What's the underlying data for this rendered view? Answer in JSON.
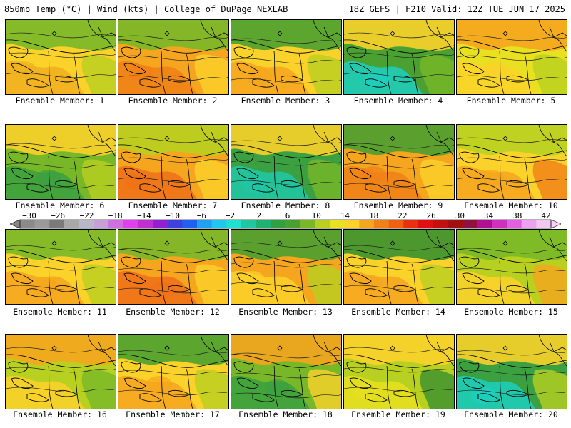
{
  "header": {
    "left": "850mb Temp (°C) | Wind (kts) | College of DuPage NEXLAB",
    "right": "18Z GEFS | F210 Valid: 12Z TUE JUN 17 2025"
  },
  "members": [
    {
      "caption": "Ensemble Member: 1",
      "palette": [
        "#f0b020",
        "#fbd22a",
        "#b8d020",
        "#78b828"
      ]
    },
    {
      "caption": "Ensemble Member: 2",
      "palette": [
        "#f08018",
        "#f5a51e",
        "#fbd22a",
        "#78b828"
      ]
    },
    {
      "caption": "Ensemble Member: 3",
      "palette": [
        "#f5a51e",
        "#fbd22a",
        "#b8d020",
        "#4aa030"
      ]
    },
    {
      "caption": "Ensemble Member: 4",
      "palette": [
        "#1cd0c0",
        "#4aa030",
        "#78b828",
        "#fbd22a"
      ]
    },
    {
      "caption": "Ensemble Member: 5",
      "palette": [
        "#fbd22a",
        "#e8e020",
        "#b8d020",
        "#f5a51e"
      ]
    },
    {
      "caption": "Ensemble Member: 6",
      "palette": [
        "#3aa040",
        "#78b828",
        "#b8d020",
        "#fbd22a"
      ]
    },
    {
      "caption": "Ensemble Member: 7",
      "palette": [
        "#f07018",
        "#f5a51e",
        "#fbd22a",
        "#b8d020"
      ]
    },
    {
      "caption": "Ensemble Member: 8",
      "palette": [
        "#20c8a8",
        "#3aa040",
        "#78b828",
        "#fbd22a"
      ]
    },
    {
      "caption": "Ensemble Member: 9",
      "palette": [
        "#f08018",
        "#f5a51e",
        "#fbd22a",
        "#4aa030"
      ]
    },
    {
      "caption": "Ensemble Member: 10",
      "palette": [
        "#f5a51e",
        "#fbd22a",
        "#f08018",
        "#b8d020"
      ]
    },
    {
      "caption": "Ensemble Member: 11",
      "palette": [
        "#f5a51e",
        "#fbd22a",
        "#b8d020",
        "#78b828"
      ]
    },
    {
      "caption": "Ensemble Member: 12",
      "palette": [
        "#f07018",
        "#f5a51e",
        "#fbd22a",
        "#78b828"
      ]
    },
    {
      "caption": "Ensemble Member: 13",
      "palette": [
        "#fbd22a",
        "#f5a51e",
        "#b8d020",
        "#4aa030"
      ]
    },
    {
      "caption": "Ensemble Member: 14",
      "palette": [
        "#f5a51e",
        "#fbd22a",
        "#b8d020",
        "#3a9030"
      ]
    },
    {
      "caption": "Ensemble Member: 15",
      "palette": [
        "#fbd22a",
        "#b8d020",
        "#f5a51e",
        "#78b828"
      ]
    },
    {
      "caption": "Ensemble Member: 16",
      "palette": [
        "#fbd22a",
        "#b8d020",
        "#78b828",
        "#f5a51e"
      ]
    },
    {
      "caption": "Ensemble Member: 17",
      "palette": [
        "#f5a51e",
        "#fbd22a",
        "#b8d020",
        "#4aa030"
      ]
    },
    {
      "caption": "Ensemble Member: 18",
      "palette": [
        "#3aa040",
        "#78b828",
        "#fbd22a",
        "#f5a51e"
      ]
    },
    {
      "caption": "Ensemble Member: 19",
      "palette": [
        "#e8e020",
        "#b8d020",
        "#3a9030",
        "#fbd22a"
      ]
    },
    {
      "caption": "Ensemble Member: 20",
      "palette": [
        "#1cd0c0",
        "#3aa040",
        "#b8d020",
        "#fbd22a"
      ]
    }
  ],
  "colorbar": {
    "labels": [
      "−30",
      "−26",
      "−22",
      "−18",
      "−14",
      "−10",
      "−6",
      "−2",
      "2",
      "6",
      "10",
      "14",
      "18",
      "22",
      "26",
      "30",
      "34",
      "38",
      "42"
    ],
    "colors": [
      "#8a8a8a",
      "#9a9a9a",
      "#7a7a7a",
      "#a8a8a8",
      "#b8b8c8",
      "#c8a0d8",
      "#d070e0",
      "#e040f0",
      "#c030d0",
      "#9020d0",
      "#4040e0",
      "#2060f0",
      "#20a0f0",
      "#20c8f0",
      "#20e0d0",
      "#20c8a0",
      "#20b070",
      "#30a040",
      "#4aa030",
      "#78b828",
      "#b8d020",
      "#e8e020",
      "#fbd22a",
      "#f5a51e",
      "#f08018",
      "#f06010",
      "#e83010",
      "#e01010",
      "#c01010",
      "#a01010",
      "#901040",
      "#b01090",
      "#d030c0",
      "#e060e0",
      "#f0a0f0",
      "#f0c8f0"
    ]
  }
}
